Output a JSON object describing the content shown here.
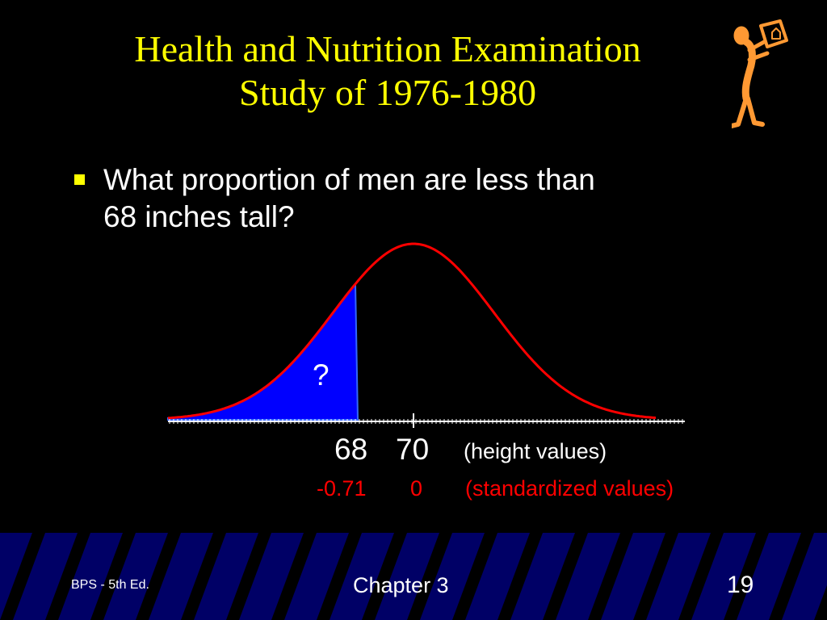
{
  "slide": {
    "title_line1": "Health and Nutrition Examination",
    "title_line2": "Study of 1976-1980",
    "bullet_text_line1": "What proportion of men are less than",
    "bullet_text_line2": "68 inches tall?"
  },
  "colors": {
    "background": "#000000",
    "title": "#ffff00",
    "curve": "#ff0000",
    "shade": "#0000ff",
    "bullet_mark": "#ffff00",
    "figure": "#ff9933",
    "footer_band": "#000066",
    "footer_stripe": "#000000"
  },
  "chart_data": {
    "type": "area",
    "distribution": "normal",
    "mean": 70,
    "shaded_below": 68,
    "shaded_label": "?",
    "height_labels": [
      "68",
      "70"
    ],
    "height_caption": "(height values)",
    "z_labels": [
      "-0.71",
      "0"
    ],
    "z_caption": "(standardized values)"
  },
  "footer": {
    "left": "BPS - 5th Ed.",
    "center": "Chapter 3",
    "right": "19"
  }
}
